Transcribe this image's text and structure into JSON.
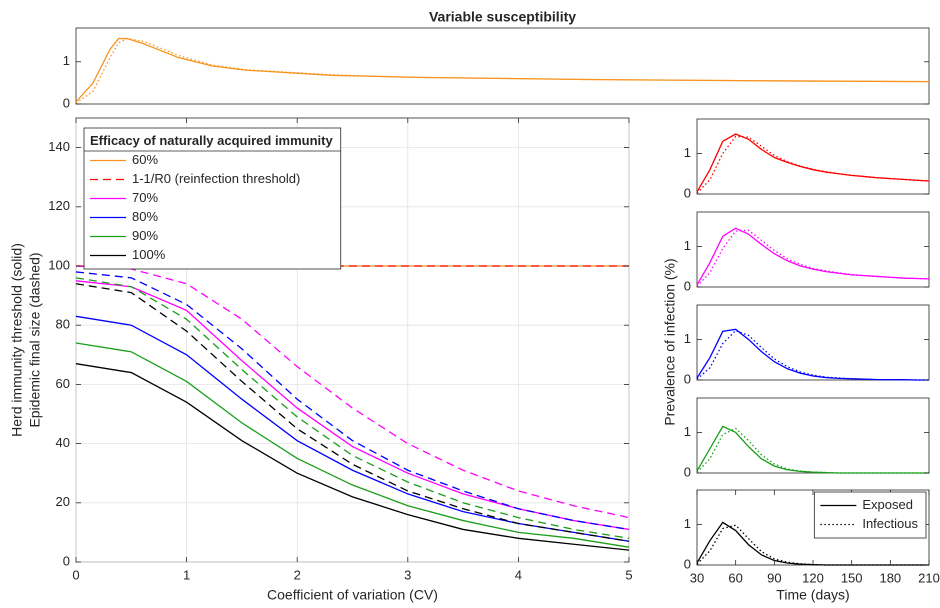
{
  "chart_data": [
    {
      "type": "line",
      "title": "Variable susceptibility",
      "x": [
        0,
        10,
        20,
        25,
        30,
        40,
        60,
        80,
        100,
        150,
        200,
        300,
        400,
        500
      ],
      "xlim": [
        0,
        500
      ],
      "ylim": [
        0,
        1.8
      ],
      "yticks": [
        0,
        1
      ],
      "grid": false,
      "series": [
        {
          "color": "#f7931e",
          "style": "solid",
          "values": [
            0.05,
            0.5,
            1.3,
            1.55,
            1.55,
            1.42,
            1.1,
            0.9,
            0.8,
            0.68,
            0.63,
            0.58,
            0.55,
            0.53
          ]
        },
        {
          "color": "#f7931e",
          "style": "dotted",
          "values": [
            0.02,
            0.3,
            1.1,
            1.45,
            1.55,
            1.48,
            1.15,
            0.92,
            0.81,
            0.69,
            0.63,
            0.58,
            0.55,
            0.53
          ]
        }
      ]
    },
    {
      "type": "line",
      "x": [
        0,
        0.5,
        1,
        1.5,
        2,
        2.5,
        3,
        3.5,
        4,
        4.5,
        5
      ],
      "xlim": [
        0,
        5
      ],
      "xticks": [
        0,
        1,
        2,
        3,
        4,
        5
      ],
      "ylim": [
        0,
        150
      ],
      "yticks": [
        0,
        20,
        40,
        60,
        80,
        100,
        120,
        140
      ],
      "grid": true,
      "xlabel": "Coefficient of variation (CV)",
      "ylabel": [
        "Herd immunity threshold (solid)",
        "Epidemic final size (dashed)"
      ],
      "legend": "upper left",
      "legend_title": "Efficacy of naturally acquired immunity",
      "series": [
        {
          "name": "60%",
          "color": "#f7931e",
          "style": "solid",
          "values": [
            100,
            100,
            100,
            100,
            100,
            100,
            100,
            100,
            100,
            100,
            100
          ]
        },
        {
          "name": "1-1/R0 (reinfection threshold)",
          "color": "#ff0000",
          "style": "dashed",
          "values": [
            100,
            100,
            100,
            100,
            100,
            100,
            100,
            100,
            100,
            100,
            100
          ]
        },
        {
          "name": "70%",
          "color": "#ff00ff",
          "style": "solid",
          "values": [
            95,
            93,
            85,
            68,
            52,
            39,
            30,
            23,
            18,
            14,
            11
          ],
          "final_size": [
            100,
            99,
            94,
            82,
            66,
            52,
            40,
            31,
            24,
            19,
            15
          ]
        },
        {
          "name": "80%",
          "color": "#0000ff",
          "style": "solid",
          "values": [
            83,
            80,
            70,
            55,
            41,
            31,
            23,
            17,
            13,
            10,
            7
          ],
          "final_size": [
            98,
            96,
            87,
            72,
            55,
            41,
            31,
            24,
            18,
            14,
            11
          ]
        },
        {
          "name": "90%",
          "color": "#1a9e1a",
          "style": "solid",
          "values": [
            74,
            71,
            61,
            47,
            35,
            26,
            19,
            14,
            10,
            8,
            5
          ],
          "final_size": [
            96,
            93,
            82,
            65,
            49,
            36,
            27,
            20,
            15,
            11,
            8
          ]
        },
        {
          "name": "100%",
          "color": "#000000",
          "style": "solid",
          "values": [
            67,
            64,
            54,
            41,
            30,
            22,
            16,
            11,
            8,
            6,
            4
          ],
          "final_size": [
            94,
            91,
            78,
            61,
            45,
            33,
            24,
            18,
            13,
            10,
            7
          ]
        }
      ]
    },
    {
      "type": "line",
      "x": [
        30,
        40,
        50,
        60,
        70,
        80,
        90,
        100,
        110,
        120,
        130,
        140,
        150,
        160,
        170,
        180,
        190,
        200,
        210
      ],
      "xlim": [
        30,
        210
      ],
      "ylim": [
        0,
        1.85
      ],
      "yticks": [
        0,
        1
      ],
      "grid": false,
      "series": [
        {
          "color": "#ff0000",
          "style": "solid",
          "values": [
            0.05,
            0.6,
            1.3,
            1.48,
            1.35,
            1.1,
            0.9,
            0.78,
            0.68,
            0.6,
            0.54,
            0.5,
            0.46,
            0.43,
            0.4,
            0.38,
            0.36,
            0.34,
            0.32
          ]
        },
        {
          "color": "#ff0000",
          "style": "dotted",
          "values": [
            0.02,
            0.35,
            1.0,
            1.42,
            1.4,
            1.18,
            0.95,
            0.8,
            0.69,
            0.61,
            0.55,
            0.5,
            0.46,
            0.43,
            0.4,
            0.38,
            0.36,
            0.34,
            0.32
          ]
        }
      ]
    },
    {
      "type": "line",
      "x": [
        30,
        40,
        50,
        60,
        70,
        80,
        90,
        100,
        110,
        120,
        130,
        140,
        150,
        160,
        170,
        180,
        190,
        200,
        210
      ],
      "xlim": [
        30,
        210
      ],
      "ylim": [
        0,
        1.85
      ],
      "yticks": [
        0,
        1
      ],
      "grid": false,
      "series": [
        {
          "color": "#ff00ff",
          "style": "solid",
          "values": [
            0.05,
            0.6,
            1.25,
            1.45,
            1.3,
            1.05,
            0.82,
            0.65,
            0.52,
            0.44,
            0.38,
            0.34,
            0.3,
            0.28,
            0.26,
            0.24,
            0.22,
            0.21,
            0.2
          ]
        },
        {
          "color": "#ff00ff",
          "style": "dotted",
          "values": [
            0.02,
            0.35,
            0.95,
            1.38,
            1.4,
            1.15,
            0.9,
            0.7,
            0.56,
            0.46,
            0.4,
            0.35,
            0.31,
            0.28,
            0.26,
            0.24,
            0.22,
            0.21,
            0.2
          ]
        }
      ]
    },
    {
      "type": "line",
      "x": [
        30,
        40,
        50,
        60,
        70,
        80,
        90,
        100,
        110,
        120,
        130,
        140,
        150,
        160,
        170,
        180,
        190,
        200,
        210
      ],
      "xlim": [
        30,
        210
      ],
      "ylim": [
        0,
        1.85
      ],
      "yticks": [
        0,
        1
      ],
      "grid": false,
      "ylabel": "Prevalence of infection (%)",
      "series": [
        {
          "color": "#0000ff",
          "style": "solid",
          "values": [
            0.05,
            0.55,
            1.2,
            1.25,
            1.0,
            0.7,
            0.45,
            0.28,
            0.17,
            0.1,
            0.06,
            0.04,
            0.03,
            0.02,
            0.01,
            0.01,
            0.01,
            0,
            0
          ]
        },
        {
          "color": "#0000ff",
          "style": "dotted",
          "values": [
            0.02,
            0.3,
            0.9,
            1.22,
            1.1,
            0.8,
            0.52,
            0.33,
            0.2,
            0.12,
            0.07,
            0.05,
            0.03,
            0.02,
            0.01,
            0.01,
            0.01,
            0,
            0
          ]
        }
      ]
    },
    {
      "type": "line",
      "x": [
        30,
        40,
        50,
        60,
        70,
        80,
        90,
        100,
        110,
        120,
        130,
        140,
        150,
        160,
        170,
        180,
        190,
        200,
        210
      ],
      "xlim": [
        30,
        210
      ],
      "ylim": [
        0,
        1.85
      ],
      "yticks": [
        0,
        1
      ],
      "grid": false,
      "series": [
        {
          "color": "#1a9e1a",
          "style": "solid",
          "values": [
            0.05,
            0.6,
            1.15,
            1.0,
            0.65,
            0.35,
            0.17,
            0.08,
            0.04,
            0.02,
            0.01,
            0,
            0,
            0,
            0,
            0,
            0,
            0,
            0
          ]
        },
        {
          "color": "#1a9e1a",
          "style": "dotted",
          "values": [
            0.02,
            0.35,
            0.95,
            1.1,
            0.8,
            0.45,
            0.22,
            0.1,
            0.05,
            0.02,
            0.01,
            0,
            0,
            0,
            0,
            0,
            0,
            0,
            0
          ]
        }
      ]
    },
    {
      "type": "line",
      "x": [
        30,
        40,
        50,
        60,
        70,
        80,
        90,
        100,
        110,
        120,
        130,
        140,
        150,
        160,
        170,
        180,
        190,
        200,
        210
      ],
      "xlim": [
        30,
        210
      ],
      "xticks": [
        30,
        60,
        90,
        120,
        150,
        180,
        210
      ],
      "ylim": [
        0,
        1.85
      ],
      "yticks": [
        0,
        1
      ],
      "grid": false,
      "xlabel": "Time (days)",
      "legend": "upper right",
      "series": [
        {
          "name": "Exposed",
          "color": "#000000",
          "style": "solid",
          "values": [
            0.05,
            0.6,
            1.05,
            0.85,
            0.5,
            0.25,
            0.11,
            0.05,
            0.02,
            0.01,
            0,
            0,
            0,
            0,
            0,
            0,
            0,
            0,
            0
          ]
        },
        {
          "name": "Infectious",
          "color": "#000000",
          "style": "dotted",
          "values": [
            0.02,
            0.35,
            0.9,
            0.98,
            0.65,
            0.33,
            0.15,
            0.07,
            0.03,
            0.01,
            0,
            0,
            0,
            0,
            0,
            0,
            0,
            0,
            0
          ]
        }
      ]
    }
  ]
}
